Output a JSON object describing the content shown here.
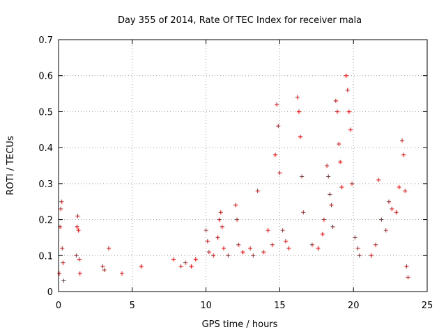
{
  "chart_data": {
    "type": "scatter",
    "title": "Day 355 of 2014, Rate Of TEC Index for receiver mala",
    "xlabel": "GPS time / hours",
    "ylabel": "ROTI / TECUs",
    "xlim": [
      0,
      25
    ],
    "ylim": [
      0,
      0.7
    ],
    "xticks": [
      0,
      5,
      10,
      15,
      20,
      25
    ],
    "yticks": [
      0,
      0.1,
      0.2,
      0.3,
      0.4,
      0.5,
      0.6,
      0.7
    ],
    "grid": true,
    "marker": "+",
    "color": "#ff0000",
    "series": [
      {
        "name": "ROTI",
        "x": [
          0.05,
          0.1,
          0.15,
          0.2,
          0.25,
          0.3,
          0.35,
          1.2,
          1.25,
          1.3,
          1.35,
          1.4,
          1.45,
          3.0,
          3.1,
          3.4,
          4.3,
          5.6,
          7.8,
          8.3,
          8.6,
          9.0,
          9.3,
          10.0,
          10.1,
          10.2,
          10.5,
          10.8,
          10.9,
          11.0,
          11.1,
          11.2,
          11.5,
          12.0,
          12.1,
          12.2,
          12.5,
          13.0,
          13.2,
          13.5,
          13.9,
          14.2,
          14.5,
          14.7,
          14.8,
          14.9,
          15.0,
          15.2,
          15.4,
          15.6,
          16.2,
          16.3,
          16.4,
          16.5,
          16.6,
          17.2,
          17.6,
          17.9,
          18.0,
          18.2,
          18.3,
          18.4,
          18.5,
          18.6,
          18.8,
          18.9,
          19.0,
          19.1,
          19.2,
          19.5,
          19.6,
          19.7,
          19.8,
          19.9,
          20.1,
          20.3,
          20.4,
          21.2,
          21.5,
          21.7,
          21.9,
          22.2,
          22.4,
          22.6,
          22.9,
          23.1,
          23.3,
          23.4,
          23.5,
          23.6,
          23.7
        ],
        "y": [
          0.05,
          0.18,
          0.23,
          0.25,
          0.12,
          0.08,
          0.03,
          0.1,
          0.18,
          0.21,
          0.17,
          0.09,
          0.05,
          0.07,
          0.06,
          0.12,
          0.05,
          0.07,
          0.09,
          0.07,
          0.08,
          0.07,
          0.09,
          0.17,
          0.14,
          0.11,
          0.1,
          0.15,
          0.2,
          0.22,
          0.18,
          0.12,
          0.1,
          0.24,
          0.2,
          0.13,
          0.11,
          0.12,
          0.1,
          0.28,
          0.11,
          0.17,
          0.13,
          0.38,
          0.52,
          0.46,
          0.33,
          0.17,
          0.14,
          0.12,
          0.54,
          0.5,
          0.43,
          0.32,
          0.22,
          0.13,
          0.12,
          0.16,
          0.2,
          0.35,
          0.32,
          0.27,
          0.24,
          0.18,
          0.53,
          0.5,
          0.41,
          0.36,
          0.29,
          0.6,
          0.56,
          0.5,
          0.45,
          0.3,
          0.15,
          0.12,
          0.1,
          0.1,
          0.13,
          0.31,
          0.2,
          0.17,
          0.25,
          0.23,
          0.22,
          0.29,
          0.42,
          0.38,
          0.28,
          0.07,
          0.04
        ]
      }
    ]
  }
}
